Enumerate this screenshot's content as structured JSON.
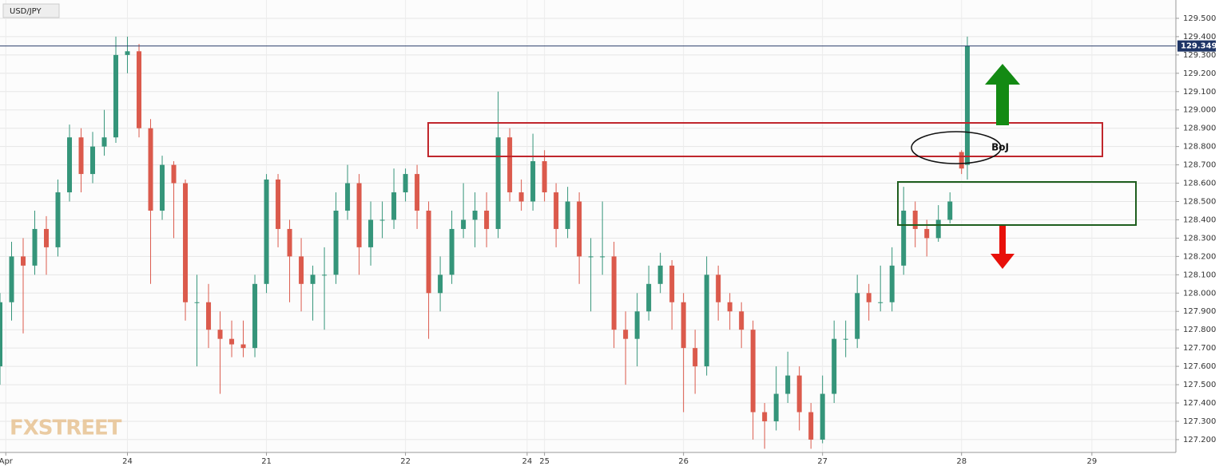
{
  "chart_data": {
    "type": "candlestick",
    "title": "USD/JPY",
    "watermark": "FXSTREET",
    "up_color": "#35957a",
    "down_color": "#db5a4c",
    "x": [
      2,
      4,
      6,
      8,
      10,
      12,
      14,
      16,
      18,
      20,
      22,
      24,
      26,
      28,
      30,
      32,
      34,
      36,
      38,
      40,
      42,
      44,
      46,
      48,
      50,
      52,
      54,
      56,
      58,
      60,
      62,
      64,
      66,
      68,
      70,
      72,
      74,
      76,
      78,
      80,
      82,
      84,
      86,
      88,
      90,
      92,
      94,
      96,
      98,
      100,
      102,
      104,
      106,
      108,
      110,
      112,
      114,
      116,
      118,
      120,
      122,
      124,
      126,
      128,
      130,
      132,
      134,
      136,
      138,
      140,
      142,
      144,
      146,
      148,
      150,
      152,
      154,
      156,
      158,
      160,
      162,
      164,
      166,
      168,
      169
    ],
    "open": [
      127.6,
      127.95,
      128.2,
      128.15,
      128.35,
      128.25,
      128.55,
      128.85,
      128.65,
      128.8,
      128.85,
      129.3,
      129.32,
      128.9,
      128.45,
      128.7,
      128.6,
      127.95,
      127.95,
      127.8,
      127.75,
      127.72,
      127.7,
      128.05,
      128.62,
      128.35,
      128.2,
      128.05,
      128.1,
      128.1,
      128.45,
      128.6,
      128.25,
      128.4,
      128.4,
      128.55,
      128.65,
      128.45,
      128.0,
      128.1,
      128.35,
      128.4,
      128.45,
      128.35,
      128.85,
      128.55,
      128.5,
      128.72,
      128.55,
      128.35,
      128.5,
      128.2,
      128.2,
      128.2,
      127.8,
      127.75,
      127.9,
      128.05,
      128.15,
      127.95,
      127.7,
      127.6,
      128.1,
      127.95,
      127.9,
      127.8,
      127.35,
      127.3,
      127.45,
      127.55,
      127.35,
      127.2,
      127.45,
      127.75,
      127.75,
      128.0,
      127.95,
      127.95,
      128.15,
      128.45,
      128.35,
      128.3,
      128.4,
      128.77,
      128.7
    ],
    "high": [
      128.0,
      128.28,
      128.3,
      128.45,
      128.42,
      128.62,
      128.92,
      128.9,
      128.88,
      129.0,
      129.4,
      129.4,
      129.36,
      128.95,
      128.75,
      128.72,
      128.62,
      128.1,
      128.05,
      127.9,
      127.85,
      127.85,
      128.1,
      128.65,
      128.65,
      128.4,
      128.3,
      128.15,
      128.25,
      128.55,
      128.7,
      128.65,
      128.5,
      128.5,
      128.68,
      128.68,
      128.7,
      128.5,
      128.2,
      128.45,
      128.6,
      128.55,
      128.55,
      129.1,
      128.9,
      128.62,
      128.87,
      128.78,
      128.6,
      128.58,
      128.55,
      128.3,
      128.5,
      128.28,
      127.9,
      128.0,
      128.15,
      128.22,
      128.18,
      128.0,
      127.8,
      128.2,
      128.15,
      128.0,
      127.95,
      127.85,
      127.4,
      127.6,
      127.68,
      127.6,
      127.4,
      127.55,
      127.85,
      127.85,
      128.1,
      128.05,
      128.15,
      128.25,
      128.58,
      128.5,
      128.4,
      128.48,
      128.55,
      128.78,
      129.4
    ],
    "low": [
      127.5,
      127.85,
      127.78,
      128.1,
      128.1,
      128.2,
      128.5,
      128.55,
      128.6,
      128.75,
      128.82,
      129.2,
      128.85,
      128.05,
      128.4,
      128.3,
      127.85,
      127.6,
      127.7,
      127.45,
      127.65,
      127.65,
      127.65,
      128.0,
      128.25,
      127.95,
      127.9,
      127.85,
      127.8,
      128.05,
      128.4,
      128.1,
      128.15,
      128.3,
      128.35,
      128.5,
      128.35,
      127.75,
      127.9,
      128.05,
      128.3,
      128.25,
      128.25,
      128.3,
      128.5,
      128.45,
      128.45,
      128.5,
      128.25,
      128.3,
      128.05,
      127.9,
      128.1,
      127.7,
      127.5,
      127.6,
      127.85,
      128.0,
      127.8,
      127.35,
      127.45,
      127.55,
      127.85,
      127.8,
      127.7,
      127.2,
      127.15,
      127.25,
      127.4,
      127.25,
      127.15,
      127.18,
      127.4,
      127.65,
      127.7,
      127.85,
      127.9,
      127.9,
      128.1,
      128.25,
      128.2,
      128.28,
      128.38,
      128.65,
      128.62
    ],
    "close": [
      127.95,
      128.2,
      128.15,
      128.35,
      128.25,
      128.55,
      128.85,
      128.65,
      128.8,
      128.85,
      129.3,
      129.32,
      128.9,
      128.45,
      128.7,
      128.6,
      127.95,
      127.95,
      127.8,
      127.75,
      127.72,
      127.7,
      128.05,
      128.62,
      128.35,
      128.2,
      128.05,
      128.1,
      128.1,
      128.45,
      128.6,
      128.25,
      128.4,
      128.4,
      128.55,
      128.65,
      128.45,
      128.0,
      128.1,
      128.35,
      128.4,
      128.45,
      128.35,
      128.85,
      128.55,
      128.5,
      128.72,
      128.55,
      128.35,
      128.5,
      128.2,
      128.2,
      128.2,
      127.8,
      127.75,
      127.9,
      128.05,
      128.15,
      127.95,
      127.7,
      127.6,
      128.1,
      127.95,
      127.9,
      127.8,
      127.35,
      127.3,
      127.45,
      127.55,
      127.35,
      127.2,
      127.45,
      127.75,
      127.75,
      128.0,
      127.95,
      127.95,
      128.15,
      128.45,
      128.35,
      128.3,
      128.4,
      128.5,
      128.68,
      129.35
    ],
    "last_price": 129.349,
    "xlim": [
      2,
      205
    ],
    "ylim": [
      127.13,
      129.6
    ],
    "xticks": [
      {
        "value": 3,
        "label": "Apr"
      },
      24,
      {
        "value": 48,
        "label": "21"
      },
      {
        "value": 72,
        "label": "22"
      },
      {
        "value": 93,
        "label": "24"
      },
      {
        "value": 96,
        "label": "25"
      },
      {
        "value": 120,
        "label": "26"
      },
      {
        "value": 144,
        "label": "27"
      },
      {
        "value": 168,
        "label": "28"
      },
      {
        "value": 190.5,
        "label": "29"
      }
    ],
    "yticks": [
      {
        "value": 127.2,
        "label": "127.200"
      },
      {
        "value": 127.3,
        "label": "127.300"
      },
      {
        "value": 127.4,
        "label": "127.400"
      },
      {
        "value": 127.5,
        "label": "127.500"
      },
      {
        "value": 127.6,
        "label": "127.600"
      },
      {
        "value": 127.7,
        "label": "127.700"
      },
      {
        "value": 127.8,
        "label": "127.800"
      },
      {
        "value": 127.9,
        "label": "127.900"
      },
      {
        "value": 128.0,
        "label": "128.000"
      },
      {
        "value": 128.1,
        "label": "128.100"
      },
      {
        "value": 128.2,
        "label": "128.200"
      },
      {
        "value": 128.3,
        "label": "128.300"
      },
      {
        "value": 128.4,
        "label": "128.400"
      },
      {
        "value": 128.5,
        "label": "128.500"
      },
      {
        "value": 128.6,
        "label": "128.600"
      },
      {
        "value": 128.7,
        "label": "128.700"
      },
      {
        "value": 128.8,
        "label": "128.800"
      },
      {
        "value": 128.9,
        "label": "128.900"
      },
      {
        "value": 129.0,
        "label": "129.000"
      },
      {
        "value": 129.1,
        "label": "129.100"
      },
      {
        "value": 129.2,
        "label": "129.200"
      },
      {
        "value": 129.3,
        "label": "129.300"
      },
      {
        "value": 129.4,
        "label": "129.400"
      },
      {
        "value": 129.5,
        "label": "129.500"
      }
    ],
    "grid": true,
    "annotation": "BoJ"
  }
}
